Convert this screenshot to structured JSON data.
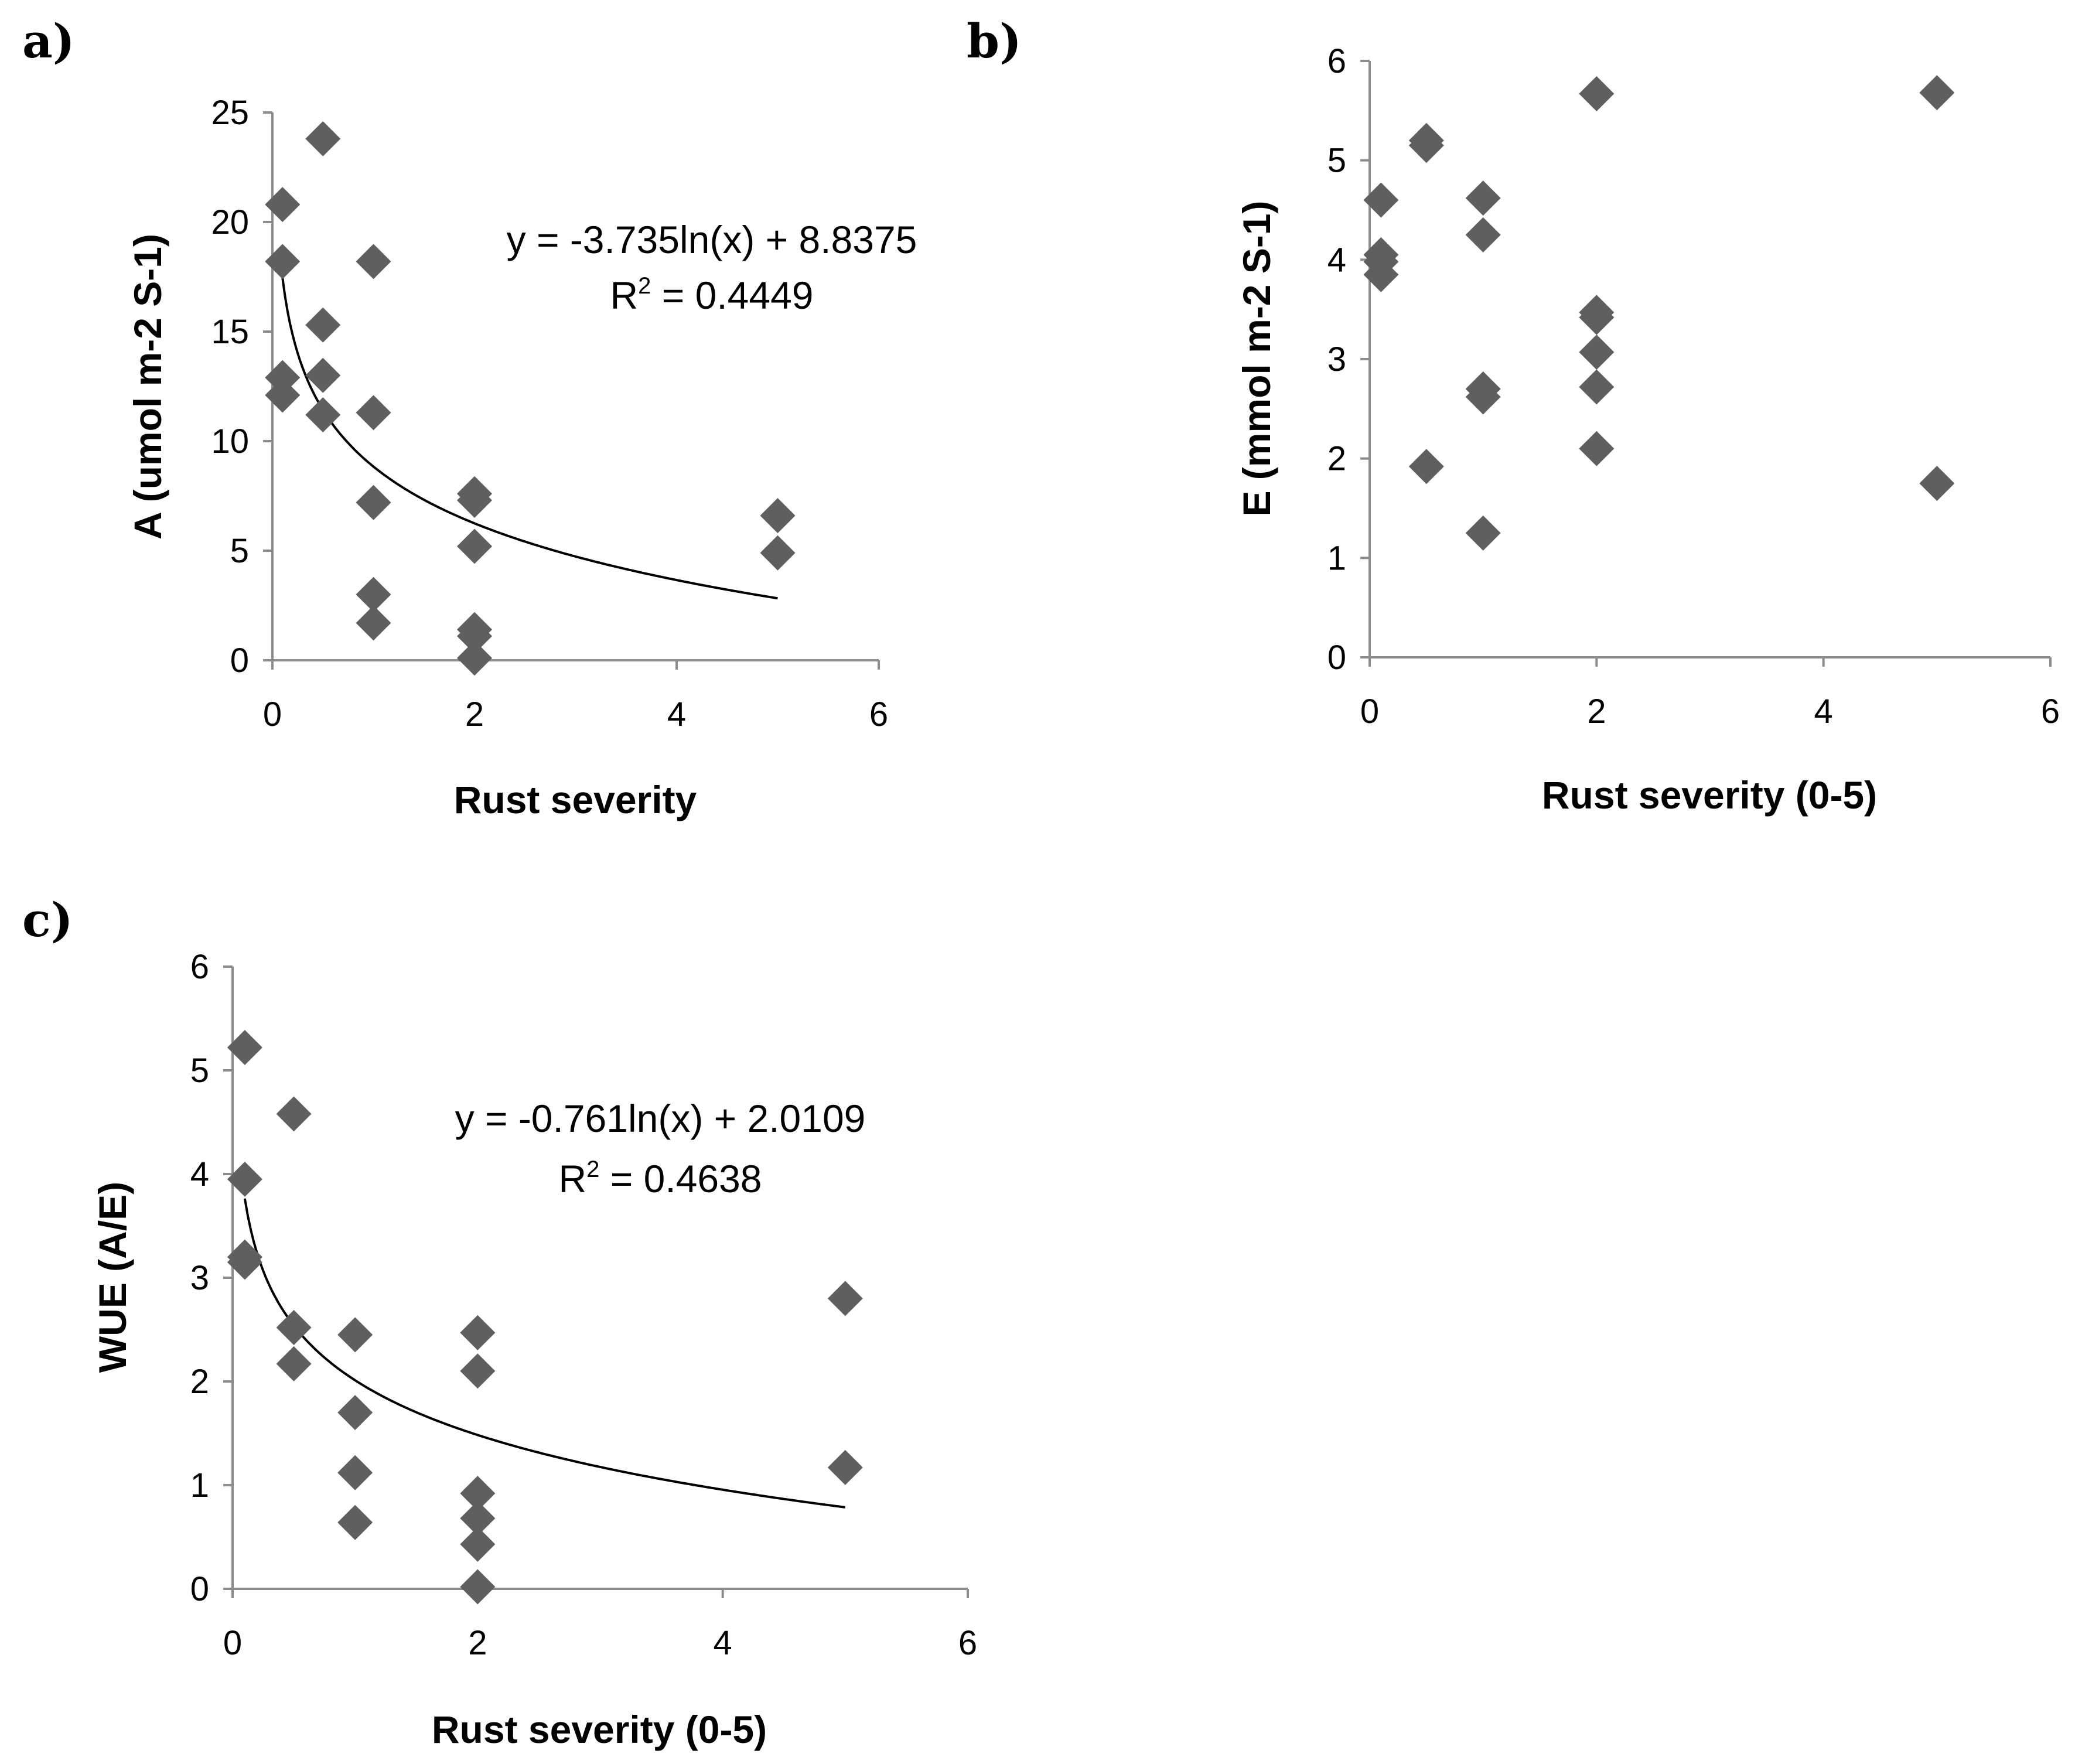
{
  "chart_data": [
    {
      "id": "a",
      "type": "scatter",
      "panel_label": "a)",
      "xlabel": "Rust severity",
      "ylabel": "A (umol m-2 S-1)",
      "xlim": [
        0,
        6
      ],
      "ylim": [
        0,
        25
      ],
      "xticks": [
        0,
        2,
        4,
        6
      ],
      "yticks": [
        0,
        5,
        10,
        15,
        20,
        25
      ],
      "x": [
        0.1,
        0.1,
        0.1,
        0.1,
        0.5,
        0.5,
        0.5,
        0.5,
        1,
        1,
        1,
        1,
        1,
        2,
        2,
        2,
        2,
        2,
        2,
        5,
        5
      ],
      "y": [
        20.8,
        18.2,
        12.9,
        12.1,
        23.8,
        15.3,
        13.0,
        11.2,
        18.2,
        11.3,
        7.2,
        3.0,
        1.7,
        7.6,
        7.3,
        5.2,
        1.4,
        1.1,
        0.1,
        6.6,
        4.9
      ],
      "trendline": {
        "type": "log",
        "a": -3.735,
        "b": 8.8375,
        "x_range": [
          0.1,
          5
        ]
      },
      "equation": "y = -3.735ln(x) + 8.8375",
      "r2_prefix": "R",
      "r2_sup": "2",
      "r2_value": " = 0.4449"
    },
    {
      "id": "b",
      "type": "scatter",
      "panel_label": "b)",
      "xlabel": "Rust severity (0-5)",
      "ylabel": "E (mmol m-2 S-1)",
      "xlim": [
        0,
        6
      ],
      "ylim": [
        0,
        6
      ],
      "xticks": [
        0,
        2,
        4,
        6
      ],
      "yticks": [
        0,
        1,
        2,
        3,
        4,
        5,
        6
      ],
      "x": [
        0.1,
        0.1,
        0.1,
        0.1,
        0.5,
        0.5,
        0.5,
        1,
        1,
        1,
        1,
        1,
        2,
        2,
        2,
        2,
        2,
        2,
        5,
        5
      ],
      "y": [
        4.6,
        4.05,
        3.98,
        3.85,
        5.2,
        5.15,
        1.92,
        4.62,
        4.25,
        2.7,
        2.62,
        1.25,
        5.67,
        3.47,
        3.42,
        3.07,
        2.72,
        2.1,
        5.68,
        1.75
      ]
    },
    {
      "id": "c",
      "type": "scatter",
      "panel_label": "c)",
      "xlabel": "Rust severity (0-5)",
      "ylabel": "WUE (A/E)",
      "xlim": [
        0,
        6
      ],
      "ylim": [
        0,
        6
      ],
      "xticks": [
        0,
        2,
        4,
        6
      ],
      "yticks": [
        0,
        1,
        2,
        3,
        4,
        5,
        6
      ],
      "x": [
        0.1,
        0.1,
        0.1,
        0.1,
        0.5,
        0.5,
        0.5,
        1,
        1,
        1,
        1,
        2,
        2,
        2,
        2,
        2,
        2,
        5,
        5
      ],
      "y": [
        5.22,
        3.95,
        3.2,
        3.15,
        4.58,
        2.52,
        2.17,
        2.45,
        1.7,
        1.12,
        0.64,
        2.47,
        2.1,
        0.92,
        0.68,
        0.43,
        0.02,
        2.8,
        1.17
      ],
      "trendline": {
        "type": "log",
        "a": -0.761,
        "b": 2.0109,
        "x_range": [
          0.1,
          5
        ]
      },
      "equation": "y = -0.761ln(x) + 2.0109",
      "r2_prefix": "R",
      "r2_sup": "2",
      "r2_value": " = 0.4638"
    }
  ]
}
